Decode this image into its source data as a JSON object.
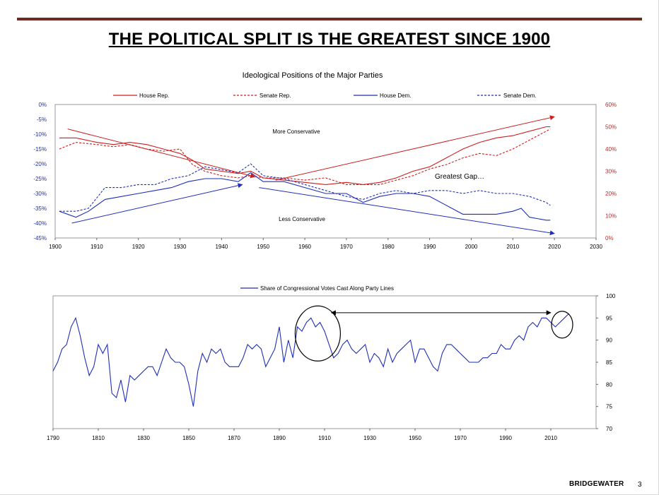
{
  "page": {
    "title": "THE POLITICAL SPLIT IS THE GREATEST SINCE 1900",
    "brand": "BRIDGEWATER",
    "page_number": "3"
  },
  "colors": {
    "rep": "#cc1f1f",
    "dem": "#1f2fb8",
    "rule": "#6e2b1f"
  },
  "chart_data": [
    {
      "type": "line",
      "title": "Ideological Positions of the Major Parties",
      "x_ticks": [
        "1900",
        "1910",
        "1920",
        "1930",
        "1940",
        "1950",
        "1960",
        "1970",
        "1980",
        "1990",
        "2000",
        "2010",
        "2020",
        "2030"
      ],
      "xlim": [
        1900,
        2030
      ],
      "y_left_ticks": [
        "0%",
        "-5%",
        "-10%",
        "-15%",
        "-20%",
        "-25%",
        "-30%",
        "-35%",
        "-40%",
        "-45%"
      ],
      "y_left_lim": [
        -45,
        0
      ],
      "y_right_ticks": [
        "60%",
        "50%",
        "40%",
        "30%",
        "20%",
        "10%",
        "0%"
      ],
      "y_right_lim": [
        0,
        60
      ],
      "legend_position": "top",
      "series": [
        {
          "name": "House Rep.",
          "axis": "right",
          "color": "#cc1f1f",
          "dash": false,
          "x": [
            1901,
            1905,
            1910,
            1914,
            1918,
            1922,
            1926,
            1930,
            1933,
            1936,
            1940,
            1944,
            1947,
            1950,
            1955,
            1960,
            1965,
            1970,
            1974,
            1978,
            1982,
            1986,
            1990,
            1994,
            1998,
            2002,
            2006,
            2010,
            2014,
            2018,
            2019
          ],
          "y": [
            45,
            45,
            43,
            42,
            43,
            42,
            40,
            38,
            35,
            31,
            30,
            29,
            30,
            27,
            26,
            25,
            24,
            25,
            24,
            25,
            27,
            30,
            32,
            36,
            40,
            43,
            45,
            46,
            48,
            50,
            50
          ]
        },
        {
          "name": "Senate Rep.",
          "axis": "right",
          "color": "#cc1f1f",
          "dash": true,
          "x": [
            1901,
            1905,
            1910,
            1914,
            1918,
            1922,
            1926,
            1930,
            1933,
            1936,
            1940,
            1944,
            1947,
            1950,
            1955,
            1960,
            1965,
            1970,
            1974,
            1978,
            1982,
            1986,
            1990,
            1994,
            1998,
            2002,
            2006,
            2010,
            2014,
            2018,
            2019
          ],
          "y": [
            40,
            43,
            42,
            41,
            42,
            40,
            39,
            40,
            33,
            30,
            28,
            27,
            28,
            27,
            27,
            26,
            27,
            24,
            24,
            24,
            26,
            28,
            31,
            33,
            36,
            38,
            37,
            40,
            44,
            48,
            49
          ]
        },
        {
          "name": "House Dem.",
          "axis": "left",
          "color": "#1f2fb8",
          "dash": false,
          "x": [
            1901,
            1905,
            1908,
            1912,
            1916,
            1920,
            1924,
            1928,
            1932,
            1936,
            1940,
            1944,
            1947,
            1950,
            1955,
            1960,
            1965,
            1970,
            1974,
            1978,
            1982,
            1986,
            1990,
            1994,
            1998,
            2002,
            2006,
            2010,
            2012,
            2014,
            2018,
            2019
          ],
          "y": [
            -36,
            -38,
            -36,
            -32,
            -31,
            -30,
            -29,
            -28,
            -26,
            -25,
            -25,
            -26,
            -23,
            -26,
            -26,
            -28,
            -30,
            -30,
            -33,
            -31,
            -30,
            -30,
            -31,
            -34,
            -37,
            -37,
            -37,
            -36,
            -35,
            -38,
            -39,
            -39
          ]
        },
        {
          "name": "Senate Dem.",
          "axis": "left",
          "color": "#1f2fb8",
          "dash": true,
          "x": [
            1901,
            1905,
            1908,
            1912,
            1916,
            1920,
            1924,
            1928,
            1932,
            1936,
            1940,
            1944,
            1947,
            1950,
            1955,
            1960,
            1965,
            1970,
            1974,
            1978,
            1982,
            1986,
            1990,
            1994,
            1998,
            2002,
            2006,
            2010,
            2014,
            2018,
            2019
          ],
          "y": [
            -36,
            -36,
            -35,
            -28,
            -28,
            -27,
            -27,
            -25,
            -24,
            -21,
            -22,
            -23,
            -20,
            -24,
            -25,
            -27,
            -29,
            -31,
            -32,
            -30,
            -29,
            -30,
            -29,
            -29,
            -30,
            -29,
            -30,
            -30,
            -31,
            -33,
            -34
          ]
        }
      ],
      "annotations": [
        "More Conservative",
        "Greatest Gap…",
        "Less Conservative"
      ]
    },
    {
      "type": "line",
      "title": "",
      "x_ticks": [
        "1790",
        "1810",
        "1830",
        "1850",
        "1870",
        "1890",
        "1910",
        "1930",
        "1950",
        "1970",
        "1990",
        "2010"
      ],
      "xlim": [
        1790,
        2030
      ],
      "y_ticks": [
        "100",
        "95",
        "90",
        "85",
        "80",
        "75",
        "70"
      ],
      "ylim": [
        70,
        100
      ],
      "legend_position": "top",
      "series": [
        {
          "name": "Share of Congressional Votes Cast Along Party Lines",
          "color": "#1f2fb8",
          "x": [
            1790,
            1792,
            1794,
            1796,
            1798,
            1800,
            1802,
            1804,
            1806,
            1808,
            1810,
            1812,
            1814,
            1816,
            1818,
            1820,
            1822,
            1824,
            1826,
            1828,
            1830,
            1832,
            1834,
            1836,
            1838,
            1840,
            1842,
            1844,
            1846,
            1848,
            1850,
            1852,
            1854,
            1856,
            1858,
            1860,
            1862,
            1864,
            1866,
            1868,
            1870,
            1872,
            1874,
            1876,
            1878,
            1880,
            1882,
            1884,
            1886,
            1888,
            1890,
            1892,
            1894,
            1896,
            1898,
            1900,
            1902,
            1904,
            1906,
            1908,
            1910,
            1912,
            1914,
            1916,
            1918,
            1920,
            1922,
            1924,
            1926,
            1928,
            1930,
            1932,
            1934,
            1936,
            1938,
            1940,
            1942,
            1944,
            1946,
            1948,
            1950,
            1952,
            1954,
            1956,
            1958,
            1960,
            1962,
            1964,
            1966,
            1968,
            1970,
            1972,
            1974,
            1976,
            1978,
            1980,
            1982,
            1984,
            1986,
            1988,
            1990,
            1992,
            1994,
            1996,
            1998,
            2000,
            2002,
            2004,
            2006,
            2008,
            2010,
            2012,
            2014,
            2016,
            2018
          ],
          "y": [
            83,
            85,
            88,
            89,
            93,
            95,
            91,
            86,
            82,
            84,
            89,
            87,
            89,
            78,
            77,
            81,
            76,
            82,
            81,
            82,
            83,
            84,
            84,
            82,
            85,
            88,
            86,
            85,
            85,
            84,
            80,
            75,
            83,
            87,
            85,
            88,
            87,
            88,
            85,
            84,
            84,
            84,
            86,
            89,
            88,
            89,
            88,
            84,
            86,
            88,
            93,
            85,
            90,
            86,
            93,
            92,
            94,
            95,
            93,
            94,
            92,
            89,
            86,
            87,
            89,
            90,
            88,
            87,
            88,
            89,
            85,
            87,
            86,
            84,
            88,
            85,
            87,
            88,
            89,
            90,
            85,
            88,
            88,
            86,
            84,
            83,
            87,
            89,
            89,
            88,
            87,
            86,
            85,
            85,
            85,
            86,
            86,
            87,
            87,
            89,
            88,
            88,
            90,
            91,
            90,
            93,
            94,
            93,
            95,
            95,
            94,
            93,
            94,
            95,
            96
          ]
        }
      ],
      "annotations": []
    }
  ]
}
